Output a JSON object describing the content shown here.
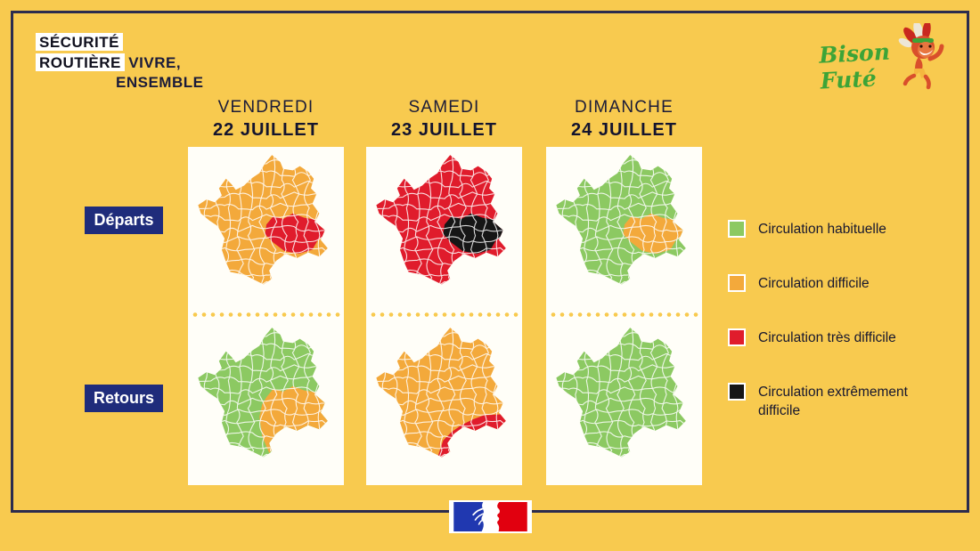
{
  "colors": {
    "background": "#F8CA4F",
    "frame": "#2C2C4E",
    "badge_navy": "#1F2C7B",
    "habituelle": "#8CC962",
    "difficile": "#F3A93B",
    "tres_difficile": "#E01C2C",
    "extremement_difficile": "#161616"
  },
  "branding": {
    "securite_line1": "SÉCURITÉ",
    "securite_line2": "ROUTIÈRE",
    "vivre": "VIVRE,",
    "ensemble": "ENSEMBLE",
    "bison_fute": "Bison Futé"
  },
  "columns": [
    {
      "day": "VENDREDI",
      "date": "22 JUILLET"
    },
    {
      "day": "SAMEDI",
      "date": "23 JUILLET"
    },
    {
      "day": "DIMANCHE",
      "date": "24 JUILLET"
    }
  ],
  "rows": [
    {
      "label": "Départs"
    },
    {
      "label": "Retours"
    }
  ],
  "legend": [
    {
      "label": "Circulation habituelle",
      "key": "habituelle"
    },
    {
      "label": "Circulation difficile",
      "key": "difficile"
    },
    {
      "label": "Circulation très difficile",
      "key": "tres_difficile"
    },
    {
      "label": "Circulation extrêmement difficile",
      "key": "extremement_difficile"
    }
  ],
  "grid": {
    "rows": [
      {
        "label": "Départs",
        "cells": [
          {
            "base": "difficile",
            "region": "auvergne-rhone-alpes",
            "region_level": "tres_difficile"
          },
          {
            "base": "tres_difficile",
            "region": "auvergne-rhone-alpes",
            "region_level": "extremement_difficile"
          },
          {
            "base": "habituelle",
            "region": "auvergne-rhone-alpes",
            "region_level": "difficile"
          }
        ]
      },
      {
        "label": "Retours",
        "cells": [
          {
            "base": "habituelle",
            "region": "sud-est",
            "region_level": "difficile"
          },
          {
            "base": "difficile",
            "region": "cote-mediterraneenne",
            "region_level": "tres_difficile"
          },
          {
            "base": "habituelle",
            "region": null,
            "region_level": null
          }
        ]
      }
    ]
  }
}
